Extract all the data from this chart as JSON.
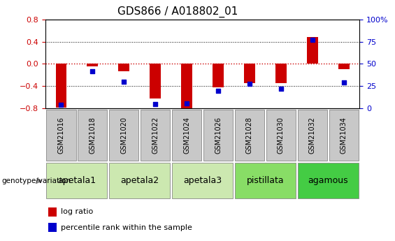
{
  "title": "GDS866 / A018802_01",
  "samples": [
    "GSM21016",
    "GSM21018",
    "GSM21020",
    "GSM21022",
    "GSM21024",
    "GSM21026",
    "GSM21028",
    "GSM21030",
    "GSM21032",
    "GSM21034"
  ],
  "log_ratio": [
    -0.78,
    -0.04,
    -0.13,
    -0.62,
    -0.82,
    -0.42,
    -0.35,
    -0.35,
    0.48,
    -0.1
  ],
  "percentile_rank": [
    4,
    42,
    30,
    5,
    6,
    20,
    28,
    22,
    77,
    29
  ],
  "ylim": [
    -0.8,
    0.8
  ],
  "yticks_left": [
    -0.8,
    -0.4,
    0,
    0.4,
    0.8
  ],
  "yticks_right": [
    0,
    25,
    50,
    75,
    100
  ],
  "bar_color": "#cc0000",
  "dot_color": "#0000cc",
  "zero_line_color": "#cc0000",
  "grid_color": "#000000",
  "groups": [
    {
      "label": "apetala1",
      "samples": [
        "GSM21016",
        "GSM21018"
      ],
      "color": "#cce8b0"
    },
    {
      "label": "apetala2",
      "samples": [
        "GSM21020",
        "GSM21022"
      ],
      "color": "#cce8b0"
    },
    {
      "label": "apetala3",
      "samples": [
        "GSM21024",
        "GSM21026"
      ],
      "color": "#cce8b0"
    },
    {
      "label": "pistillata",
      "samples": [
        "GSM21028",
        "GSM21030"
      ],
      "color": "#88dd66"
    },
    {
      "label": "agamous",
      "samples": [
        "GSM21032",
        "GSM21034"
      ],
      "color": "#44cc44"
    }
  ],
  "sample_box_color": "#c8c8c8",
  "legend_log_ratio_label": "log ratio",
  "legend_percentile_label": "percentile rank within the sample",
  "genotype_label": "genotype/variation",
  "title_fontsize": 11,
  "tick_fontsize": 8,
  "sample_fontsize": 7,
  "group_fontsize": 9
}
